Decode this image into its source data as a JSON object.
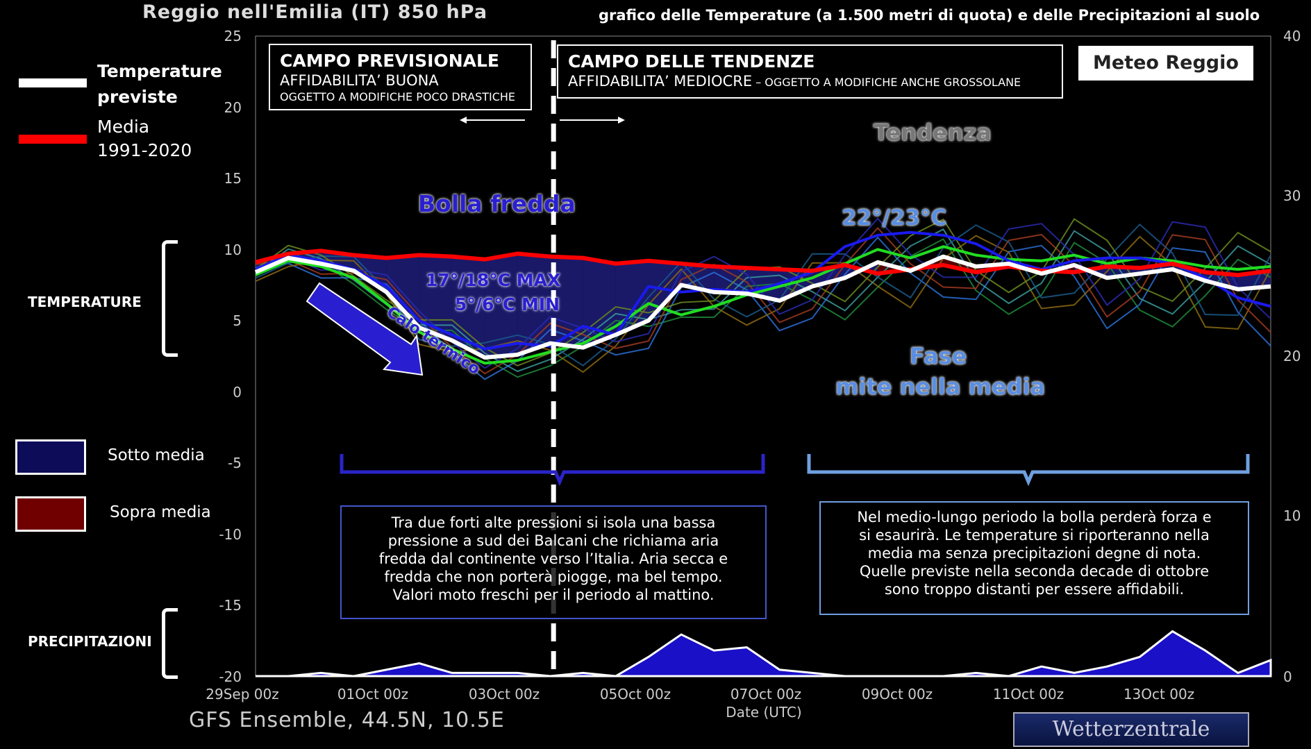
{
  "title": {
    "main": "Reggio nell'Emilia  (IT)  850 hPa",
    "sub": "grafico delle Temperature  (a 1.500 metri di quota) e delle Precipitazioni al suolo"
  },
  "legend": {
    "forecast_label": "Temperature previste",
    "average_label_1": "Media",
    "average_label_2": "1991-2020",
    "below_label": "Sotto media",
    "above_label": "Sopra media"
  },
  "side_labels": {
    "temperature": "TEMPERATURE",
    "precipitation": "PRECIPITAZIONI"
  },
  "panels": {
    "forecast": {
      "title": "CAMPO PREVISIONALE",
      "line1": "AFFIDABILITA’ BUONA",
      "line2": "OGGETTO A MODIFICHE POCO DRASTICHE"
    },
    "trend": {
      "title": "CAMPO DELLE TENDENZE",
      "line1": "AFFIDABILITA’ MEDIOCRE",
      "line1b": " – OGGETTO A MODIFICHE ANCHE GROSSOLANE"
    }
  },
  "annotations": {
    "cold_bubble": "Bolla fredda",
    "max": "17°/18°C MAX",
    "min": "5°/6°C MIN",
    "drop": "Calo termico",
    "trend": "Tendenza",
    "peak": "22°/23°C",
    "mild_1": "Fase",
    "mild_2": "mite nella media"
  },
  "notes": {
    "left": [
      "Tra due forti alte pressioni si isola una bassa",
      "pressione a sud dei Balcani che richiama aria",
      "fredda dal continente verso l’Italia. Aria secca e",
      "fredda che non porterà piogge, ma bel tempo.",
      "Valori moto freschi per il periodo al mattino."
    ],
    "right": [
      "Nel medio-lungo periodo la bolla perderà forza e",
      "si esaurirà. Le temperature si riporteranno nella",
      "media ma senza precipitazioni degne di nota.",
      "Quelle previste nella seconda decade di ottobre",
      "sono troppo distanti per essere affidabili."
    ]
  },
  "logo": {
    "text": "Meteo Reggio"
  },
  "footer": {
    "source": "GFS Ensemble, 44.5N, 10.5E",
    "brand": "Wetterzentrale",
    "xlabel": "Date (UTC)"
  },
  "colors": {
    "forecast": "#ffffff",
    "average": "#ff0000",
    "below": "#1a1a6e",
    "above": "#7a0000",
    "precip_fill": "#1a10c8"
  },
  "chart_data": {
    "type": "line",
    "title": "Reggio nell'Emilia  (IT)  850 hPa",
    "xlabel": "Date (UTC)",
    "ylabel": "",
    "x_ticks": [
      "29Sep 00z",
      "01Oct 00z",
      "03Oct 00z",
      "05Oct 00z",
      "07Oct 00z",
      "09Oct 00z",
      "11Oct 00z",
      "13Oct 00z"
    ],
    "x_days": [
      0,
      15.5
    ],
    "y_ticks": [
      25,
      20,
      15,
      10,
      5,
      0,
      -5,
      -10,
      -15,
      -20
    ],
    "ylim": [
      -20,
      25
    ],
    "y2_ticks": [
      40,
      30,
      20,
      10,
      0
    ],
    "y2lim": [
      0,
      40
    ],
    "grid": false,
    "x": [
      0,
      0.5,
      1,
      1.5,
      2,
      2.5,
      3,
      3.5,
      4,
      4.5,
      5,
      5.5,
      6,
      6.5,
      7,
      7.5,
      8,
      8.5,
      9,
      9.5,
      10,
      10.5,
      11,
      11.5,
      12,
      12.5,
      13,
      13.5,
      14,
      14.5,
      15,
      15.5
    ],
    "series": [
      {
        "name": "Media 1991-2020",
        "values": [
          9.1,
          9.7,
          9.9,
          9.6,
          9.4,
          9.6,
          9.5,
          9.3,
          9.7,
          9.5,
          9.4,
          9.0,
          9.2,
          9.0,
          8.8,
          8.7,
          8.6,
          8.5,
          8.9,
          8.3,
          8.6,
          8.9,
          8.4,
          8.8,
          8.5,
          8.4,
          8.8,
          8.7,
          9.0,
          8.4,
          8.2,
          8.5
        ]
      },
      {
        "name": "Temperature previste",
        "values": [
          8.4,
          9.4,
          9.0,
          8.5,
          7.0,
          4.5,
          3.6,
          2.4,
          2.6,
          3.4,
          3.1,
          4.0,
          5.0,
          7.5,
          7.0,
          6.9,
          6.4,
          7.4,
          8.0,
          9.1,
          8.5,
          9.5,
          8.8,
          9.0,
          8.3,
          8.9,
          8.0,
          8.3,
          8.6,
          7.8,
          7.2,
          7.4
        ]
      },
      {
        "name": "",
        "values": [
          8.2,
          9.2,
          8.8,
          8.0,
          6.2,
          4.2,
          3.0,
          2.0,
          2.2,
          2.8,
          3.4,
          4.6,
          6.2,
          5.4,
          6.0,
          6.8,
          7.4,
          8.0,
          9.0,
          10.0,
          9.4,
          10.2,
          9.6,
          9.3,
          9.2,
          9.6,
          9.0,
          9.4,
          9.2,
          8.8,
          8.6,
          8.8
        ]
      },
      {
        "name": "",
        "values": [
          8.6,
          9.6,
          9.2,
          8.6,
          7.4,
          5.0,
          4.0,
          3.0,
          3.4,
          3.2,
          4.6,
          4.0,
          7.4,
          7.0,
          7.2,
          7.0,
          7.6,
          8.4,
          10.2,
          11.0,
          11.2,
          11.0,
          10.4,
          9.2,
          8.6,
          9.2,
          9.4,
          9.4,
          9.0,
          8.0,
          6.6,
          6.0
        ]
      }
    ],
    "precip": {
      "name": "Precipitazioni",
      "values": [
        0,
        0,
        0.2,
        0,
        0.4,
        0.8,
        0.2,
        0.2,
        0.2,
        0,
        0.2,
        0,
        1.2,
        2.6,
        1.6,
        1.8,
        0.4,
        0.2,
        0,
        0,
        0,
        0,
        0.2,
        0,
        0.6,
        0.2,
        0.6,
        1.2,
        2.8,
        1.6,
        0.2,
        1.0
      ]
    }
  }
}
